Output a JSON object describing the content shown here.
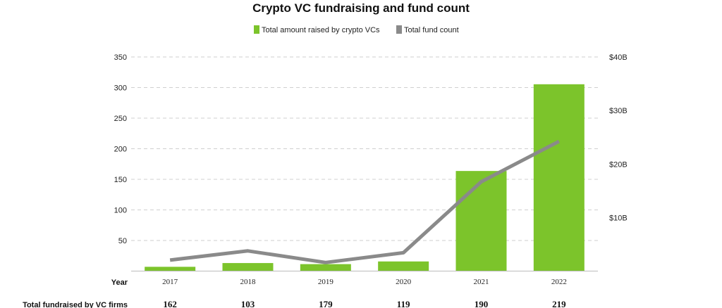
{
  "chart_data": {
    "type": "bar",
    "title": "Crypto VC fundraising and fund count",
    "legend": {
      "placement": "top-center",
      "items": [
        {
          "label": "Total amount raised by crypto VCs",
          "color": "#7cc42b",
          "mark": "bar"
        },
        {
          "label": "Total fund count",
          "color": "#8a8a8a",
          "mark": "line"
        }
      ]
    },
    "x_label": "Year",
    "categories": [
      "2017",
      "2018",
      "2019",
      "2020",
      "2021",
      "2022"
    ],
    "left_axis": {
      "range": [
        0,
        350
      ],
      "ticks": [
        50,
        100,
        150,
        200,
        250,
        300,
        350
      ],
      "tick_labels": [
        "50",
        "100",
        "150",
        "200",
        "250",
        "300",
        "350"
      ]
    },
    "right_axis": {
      "range_billions": [
        0,
        40
      ],
      "ticks": [
        10,
        20,
        30,
        40
      ],
      "tick_labels": [
        "$10B",
        "$20B",
        "$30B",
        "$40B"
      ]
    },
    "series": [
      {
        "name": "Total amount raised by crypto VCs",
        "axis": "right",
        "unit": "billion USD",
        "color": "#7cc42b",
        "values": [
          0.8,
          1.5,
          1.3,
          1.8,
          18.7,
          34.9
        ]
      },
      {
        "name": "Total fund count",
        "axis": "left",
        "color": "#8a8a8a",
        "values": [
          18,
          33,
          14,
          30,
          146,
          212
        ]
      }
    ],
    "table_row": {
      "label": "Total fundraised by VC firms",
      "values": [
        "162",
        "103",
        "179",
        "119",
        "190",
        "219"
      ]
    },
    "grid": true,
    "grid_style": "dashed"
  }
}
